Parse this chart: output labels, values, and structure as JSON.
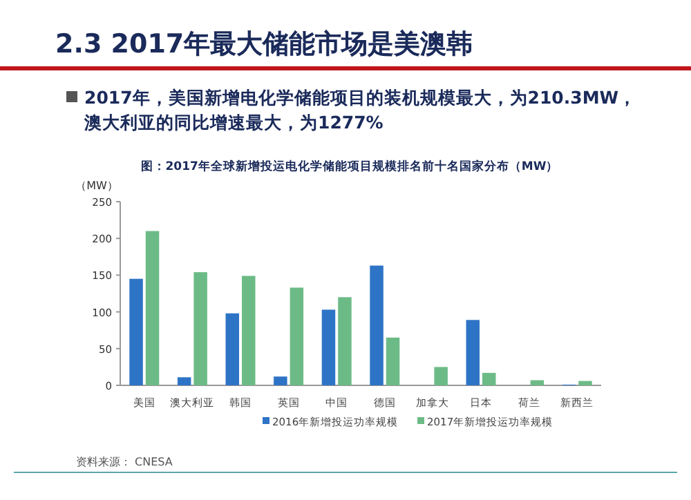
{
  "chart_data": {
    "type": "bar",
    "title": "2.3 2017年最大储能市场是美澳韩",
    "subtitle": "图：2017年全球新增投运电化学储能项目规模排名前十名国家分布（MW）",
    "ylabel": "（MW）",
    "annotations": [
      "2017年，美国新增电化学储能项目的装机规模最大，为210.3MW，澳大利亚的同比增速最大，为1277%",
      "资料来源： CNESA"
    ],
    "categories": [
      "美国",
      "澳大利亚",
      "韩国",
      "英国",
      "中国",
      "德国",
      "加拿大",
      "日本",
      "荷兰",
      "新西兰"
    ],
    "series": [
      {
        "name": "2016年新增投运功率规模",
        "color": "#2e74c6",
        "values": [
          145,
          11,
          98,
          12,
          103,
          163,
          0,
          89,
          0,
          1
        ]
      },
      {
        "name": "2017年新增投运功率规模",
        "color": "#6cbb86",
        "values": [
          210,
          154,
          149,
          133,
          120,
          65,
          25,
          17,
          7,
          6
        ]
      }
    ],
    "ylim": [
      0,
      250
    ],
    "yticks": [
      0,
      50,
      100,
      150,
      200,
      250
    ],
    "grid": false,
    "legend": "bottom"
  }
}
